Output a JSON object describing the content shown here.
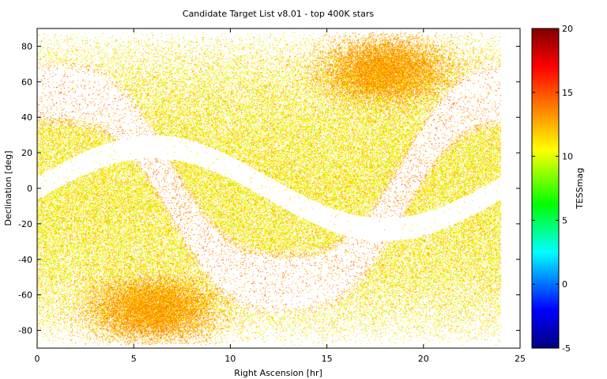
{
  "chart_data": {
    "type": "scatter",
    "title": "Candidate Target List v8.01 - top 400K stars",
    "xlabel": "Right Ascension [hr]",
    "ylabel": "Declination [deg]",
    "xlim": [
      0,
      25
    ],
    "ylim": [
      -90,
      90
    ],
    "x_ticks": [
      0,
      5,
      10,
      15,
      20,
      25
    ],
    "y_ticks": [
      -80,
      -60,
      -40,
      -20,
      0,
      20,
      40,
      60,
      80
    ],
    "x_tick_labels": [
      "0",
      "5",
      "10",
      "15",
      "20",
      "25"
    ],
    "y_tick_labels": [
      "-80",
      "-60",
      "-40",
      "-20",
      "0",
      "20",
      "40",
      "60",
      "80"
    ],
    "x_data_range": [
      0,
      24
    ],
    "y_data_range": [
      -88,
      88
    ],
    "colorbar": {
      "label": "TESSmag",
      "range": [
        -5,
        20
      ],
      "ticks": [
        -5,
        0,
        5,
        10,
        15,
        20
      ],
      "tick_labels": [
        "-5",
        "0",
        "5",
        "10",
        "15",
        "20"
      ],
      "colormap": "jet",
      "colormap_stops": [
        "#000080",
        "#0000ff",
        "#00ffff",
        "#00ff00",
        "#ffff00",
        "#ff8000",
        "#ff0000",
        "#800000"
      ]
    },
    "point_count": 400000,
    "grid": false,
    "legend": "none",
    "features": {
      "dense_regions": [
        {
          "ra": 6,
          "dec": -68,
          "tessmag_peak": 14
        },
        {
          "ra": 18,
          "dec": 66,
          "tessmag_peak": 14
        }
      ],
      "avoided_bands": [
        "galactic-plane",
        "ecliptic-band"
      ]
    }
  }
}
